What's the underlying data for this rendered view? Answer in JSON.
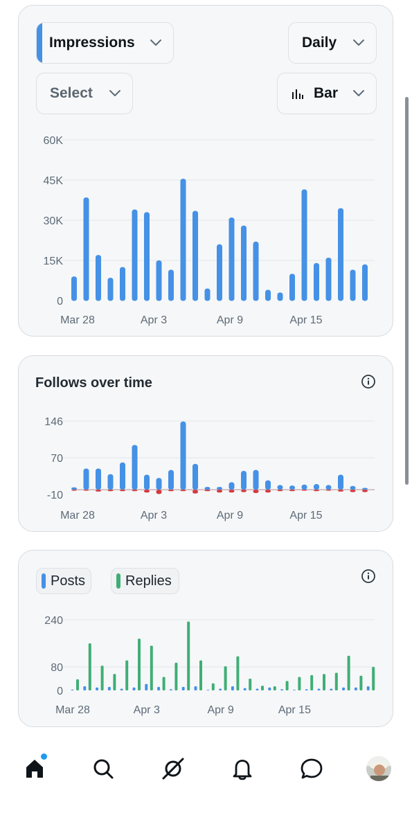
{
  "colors": {
    "blue": "#4591e6",
    "green": "#3fae76",
    "red": "#d33a3f",
    "grid": "#e3e7eb",
    "axis": "#5c6a78"
  },
  "impressions_card": {
    "metric_select": "Impressions",
    "period_select": "Daily",
    "compare_select": "Select",
    "chart_type_select": "Bar",
    "chart_data": {
      "type": "bar",
      "y_ticks": [
        "60K",
        "45K",
        "30K",
        "15K",
        "0"
      ],
      "ylim": [
        0,
        60000
      ],
      "x_tick_labels": [
        "Mar 28",
        "Apr 3",
        "Apr 9",
        "Apr 15"
      ],
      "series": [
        {
          "values": [
            9000,
            38500,
            17000,
            8500,
            12500,
            34000,
            33000,
            15000,
            11500,
            45500,
            33500,
            4500,
            21000,
            31000,
            28000,
            22000,
            4000,
            3000,
            10000,
            41500,
            14000,
            16000,
            34500,
            11500,
            13500
          ]
        }
      ]
    }
  },
  "follows_card": {
    "title": "Follows over time",
    "chart_data": {
      "type": "bar",
      "y_ticks": [
        "146",
        "70",
        "-10"
      ],
      "ylim": [
        -10,
        146
      ],
      "x_tick_labels": [
        "Mar 28",
        "Apr 3",
        "Apr 9",
        "Apr 15"
      ],
      "series": [
        {
          "values": [
            5,
            45,
            45,
            33,
            58,
            95,
            32,
            25,
            42,
            145,
            55,
            6,
            6,
            16,
            40,
            42,
            20,
            10,
            9,
            11,
            12,
            10,
            32,
            8,
            4
          ]
        },
        {
          "values": [
            -2,
            -2,
            -4,
            -3,
            -3,
            -3,
            -6,
            -9,
            -3,
            -3,
            -8,
            -3,
            -6,
            -6,
            -5,
            -7,
            -6,
            -3,
            -3,
            -2,
            -3,
            -2,
            -4,
            -5,
            -5
          ]
        }
      ]
    }
  },
  "posts_card": {
    "legend_posts": "Posts",
    "legend_replies": "Replies",
    "chart_data": {
      "type": "bar",
      "y_ticks": [
        "240",
        "80",
        "0"
      ],
      "ylim": [
        0,
        240
      ],
      "x_tick_labels": [
        "Mar 28",
        "Apr 3",
        "Apr 9",
        "Apr 15"
      ],
      "series": [
        {
          "name": "Posts",
          "values": [
            3,
            14,
            10,
            12,
            6,
            10,
            22,
            12,
            4,
            12,
            14,
            2,
            6,
            14,
            8,
            6,
            10,
            4,
            2,
            4,
            6,
            6,
            10,
            10,
            14
          ]
        },
        {
          "name": "Replies",
          "values": [
            38,
            160,
            84,
            56,
            102,
            176,
            152,
            46,
            94,
            234,
            102,
            24,
            82,
            116,
            40,
            16,
            14,
            32,
            46,
            52,
            56,
            60,
            118,
            50,
            80
          ]
        }
      ]
    }
  },
  "nav": {
    "items": [
      {
        "icon": "home-icon",
        "active": true
      },
      {
        "icon": "search-icon"
      },
      {
        "icon": "grok-icon"
      },
      {
        "icon": "bell-icon"
      },
      {
        "icon": "messages-icon"
      },
      {
        "icon": "profile-avatar"
      }
    ]
  }
}
